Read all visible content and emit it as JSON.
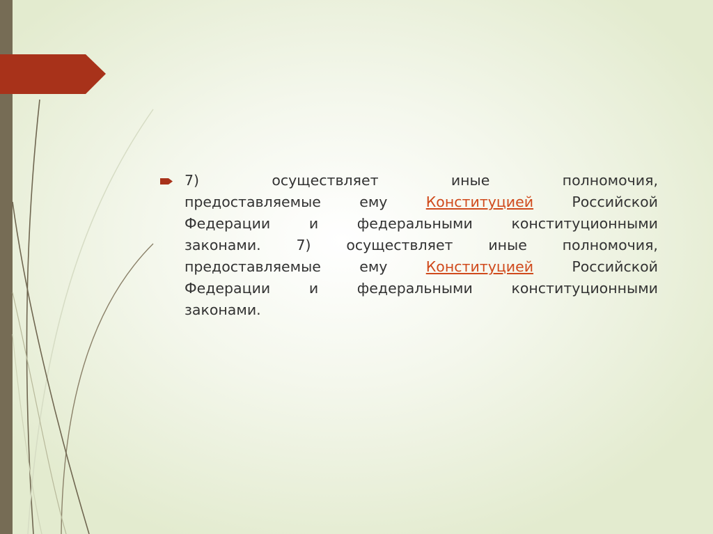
{
  "slide": {
    "colors": {
      "accent": "#a8321a",
      "sidebar": "#766c55",
      "link": "#d04a1c",
      "text": "#333333"
    },
    "bullet_icon": "arrow-bullet",
    "lines": [
      [
        "7)",
        "осуществляет",
        "иные",
        "полномочия,"
      ],
      [
        "предоставляемые",
        "ему",
        "Конституцией",
        "Российской"
      ],
      [
        "Федерации",
        "и",
        "федеральными",
        "конституционными"
      ],
      [
        "законами.",
        "7)",
        "осуществляет",
        "иные",
        "полномочия,"
      ],
      [
        "предоставляемые",
        "ему",
        "Конституцией",
        "Российской"
      ],
      [
        "Федерации",
        "и",
        "федеральными",
        "конституционными"
      ],
      [
        "законами."
      ]
    ],
    "link_word": "Конституцией"
  }
}
